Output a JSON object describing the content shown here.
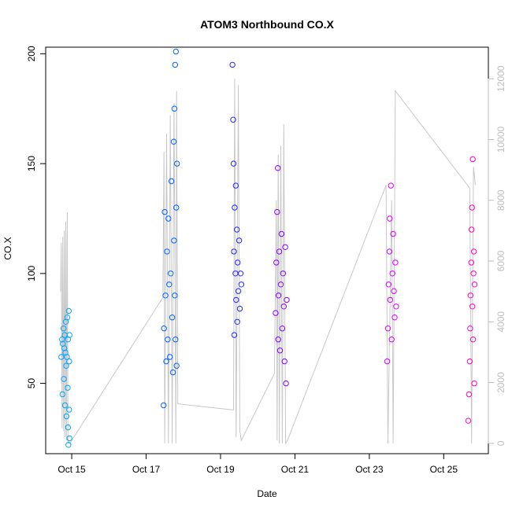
{
  "chart_data": {
    "type": "scatter",
    "title": "ATOM3 Northbound CO.X",
    "xlabel": "Date",
    "ylabel": "CO.X",
    "x_ticks": [
      "Oct 15",
      "Oct 17",
      "Oct 19",
      "Oct 21",
      "Oct 23",
      "Oct 25"
    ],
    "x_tick_values": [
      15,
      17,
      19,
      21,
      23,
      25
    ],
    "xlim": [
      14.3,
      26.2
    ],
    "y_ticks": [
      50,
      100,
      150,
      200
    ],
    "ylim": [
      18,
      203
    ],
    "y2_ticks": [
      0,
      2000,
      4000,
      6000,
      8000,
      10000,
      12000
    ],
    "y2lim": [
      -340,
      13040
    ],
    "grid": false,
    "marker": "open-circle",
    "series": [
      {
        "color": "#00A5FF",
        "x_range": [
          14.7,
          14.95
        ],
        "points": [
          [
            14.72,
            62
          ],
          [
            14.74,
            70
          ],
          [
            14.75,
            45
          ],
          [
            14.76,
            68
          ],
          [
            14.78,
            75
          ],
          [
            14.79,
            52
          ],
          [
            14.8,
            66
          ],
          [
            14.81,
            72
          ],
          [
            14.82,
            40
          ],
          [
            14.83,
            64
          ],
          [
            14.84,
            78
          ],
          [
            14.85,
            58
          ],
          [
            14.86,
            35
          ],
          [
            14.87,
            62
          ],
          [
            14.88,
            80
          ],
          [
            14.89,
            48
          ],
          [
            14.9,
            30
          ],
          [
            14.9,
            70
          ],
          [
            14.91,
            22
          ],
          [
            14.92,
            83
          ],
          [
            14.93,
            60
          ],
          [
            14.93,
            38
          ],
          [
            14.94,
            25
          ],
          [
            14.94,
            72
          ]
        ]
      },
      {
        "color": "#0064FF",
        "x_range": [
          17.45,
          17.85
        ],
        "points": [
          [
            17.47,
            40
          ],
          [
            17.48,
            75
          ],
          [
            17.5,
            128
          ],
          [
            17.52,
            90
          ],
          [
            17.54,
            60
          ],
          [
            17.56,
            110
          ],
          [
            17.58,
            70
          ],
          [
            17.6,
            125
          ],
          [
            17.62,
            95
          ],
          [
            17.64,
            62
          ],
          [
            17.66,
            100
          ],
          [
            17.68,
            142
          ],
          [
            17.7,
            80
          ],
          [
            17.72,
            55
          ],
          [
            17.74,
            160
          ],
          [
            17.75,
            115
          ],
          [
            17.76,
            175
          ],
          [
            17.77,
            90
          ],
          [
            17.78,
            195
          ],
          [
            17.79,
            70
          ],
          [
            17.8,
            201
          ],
          [
            17.81,
            130
          ],
          [
            17.82,
            58
          ],
          [
            17.83,
            150
          ]
        ]
      },
      {
        "color": "#2828FF",
        "x_range": [
          19.3,
          19.6
        ],
        "points": [
          [
            19.32,
            195
          ],
          [
            19.34,
            170
          ],
          [
            19.35,
            150
          ],
          [
            19.36,
            110
          ],
          [
            19.37,
            72
          ],
          [
            19.38,
            130
          ],
          [
            19.4,
            100
          ],
          [
            19.41,
            140
          ],
          [
            19.42,
            88
          ],
          [
            19.44,
            120
          ],
          [
            19.45,
            78
          ],
          [
            19.46,
            105
          ],
          [
            19.48,
            92
          ],
          [
            19.5,
            115
          ],
          [
            19.52,
            84
          ],
          [
            19.54,
            100
          ],
          [
            19.56,
            95
          ]
        ]
      },
      {
        "color": "#8C00FF",
        "x_range": [
          20.45,
          20.85
        ],
        "points": [
          [
            20.48,
            82
          ],
          [
            20.5,
            105
          ],
          [
            20.52,
            128
          ],
          [
            20.54,
            148
          ],
          [
            20.55,
            70
          ],
          [
            20.56,
            90
          ],
          [
            20.58,
            110
          ],
          [
            20.6,
            65
          ],
          [
            20.62,
            95
          ],
          [
            20.64,
            118
          ],
          [
            20.66,
            75
          ],
          [
            20.68,
            100
          ],
          [
            20.7,
            85
          ],
          [
            20.72,
            60
          ],
          [
            20.74,
            112
          ],
          [
            20.76,
            50
          ],
          [
            20.78,
            88
          ]
        ]
      },
      {
        "color": "#D700FF",
        "x_range": [
          23.45,
          23.75
        ],
        "points": [
          [
            23.48,
            60
          ],
          [
            23.5,
            75
          ],
          [
            23.52,
            95
          ],
          [
            23.54,
            110
          ],
          [
            23.55,
            125
          ],
          [
            23.56,
            88
          ],
          [
            23.58,
            140
          ],
          [
            23.6,
            70
          ],
          [
            23.62,
            100
          ],
          [
            23.64,
            118
          ],
          [
            23.66,
            92
          ],
          [
            23.68,
            80
          ],
          [
            23.7,
            105
          ],
          [
            23.72,
            85
          ]
        ]
      },
      {
        "color": "#FF00C8",
        "x_range": [
          25.65,
          25.85
        ],
        "points": [
          [
            25.66,
            33
          ],
          [
            25.68,
            45
          ],
          [
            25.7,
            60
          ],
          [
            25.71,
            75
          ],
          [
            25.72,
            90
          ],
          [
            25.74,
            105
          ],
          [
            25.75,
            120
          ],
          [
            25.76,
            130
          ],
          [
            25.77,
            85
          ],
          [
            25.78,
            152
          ],
          [
            25.79,
            70
          ],
          [
            25.8,
            100
          ],
          [
            25.81,
            110
          ],
          [
            25.82,
            50
          ],
          [
            25.83,
            95
          ]
        ]
      }
    ],
    "secondary_line": {
      "color": "#c8c8c8",
      "points": [
        [
          14.7,
          5000
        ],
        [
          14.72,
          6600
        ],
        [
          14.74,
          500
        ],
        [
          14.76,
          6800
        ],
        [
          14.78,
          400
        ],
        [
          14.8,
          7000
        ],
        [
          14.82,
          200
        ],
        [
          14.84,
          7300
        ],
        [
          14.86,
          100
        ],
        [
          14.88,
          7600
        ],
        [
          14.9,
          0
        ],
        [
          14.95,
          0
        ],
        [
          17.45,
          4800
        ],
        [
          17.48,
          9600
        ],
        [
          17.5,
          0
        ],
        [
          17.55,
          10200
        ],
        [
          17.6,
          0
        ],
        [
          17.65,
          10800
        ],
        [
          17.7,
          0
        ],
        [
          17.75,
          11200
        ],
        [
          17.8,
          0
        ],
        [
          17.82,
          11600
        ],
        [
          17.85,
          1300
        ],
        [
          19.35,
          1100
        ],
        [
          19.38,
          12000
        ],
        [
          19.42,
          200
        ],
        [
          19.48,
          11800
        ],
        [
          19.52,
          400
        ],
        [
          19.56,
          100
        ],
        [
          20.45,
          2300
        ],
        [
          20.5,
          8000
        ],
        [
          20.52,
          100
        ],
        [
          20.55,
          9500
        ],
        [
          20.58,
          0
        ],
        [
          20.62,
          9800
        ],
        [
          20.66,
          0
        ],
        [
          20.7,
          10500
        ],
        [
          20.75,
          0
        ],
        [
          20.8,
          100
        ],
        [
          23.45,
          8500
        ],
        [
          23.5,
          0
        ],
        [
          23.6,
          8000
        ],
        [
          23.64,
          0
        ],
        [
          23.7,
          11600
        ],
        [
          25.7,
          8400
        ],
        [
          25.75,
          0
        ],
        [
          25.8,
          9100
        ],
        [
          25.85,
          8500
        ]
      ]
    }
  }
}
